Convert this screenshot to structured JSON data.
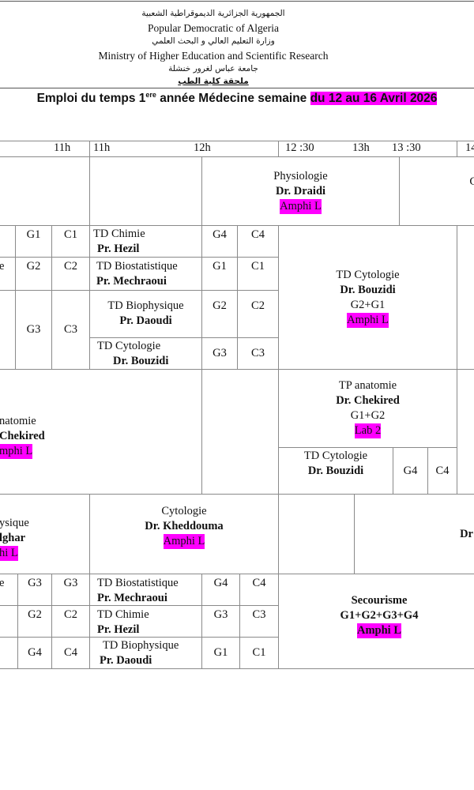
{
  "header": {
    "arabic_republic": "الجمهورية الجزائرية الديموقراطية الشعبية",
    "republic": "Popular Democratic of Algeria",
    "arabic_ministry": "وزارة التعليم العالي و البحث العلمي",
    "ministry": "Ministry of  Higher Education  and Scientific Research",
    "arabic_university": "جامعة عباس لغرور خنشلة",
    "arabic_faculty": "ملحقة كلية الطب"
  },
  "title": {
    "main": "Emploi du temps 1",
    "sup": "ere",
    "rest": " année Médecine semaine ",
    "dates": "du 12 au 16 Avril 2026"
  },
  "highlight_color": "#ff00ff",
  "times": [
    "11h",
    "11h",
    "12h",
    "12 :30",
    "13h",
    "13 :30",
    "14"
  ],
  "row1": {
    "course": "Physiologie",
    "teacher": "Dr. Draidi",
    "room": "Amphi L",
    "right_fragment": "C"
  },
  "row2": {
    "left": [
      {
        "frag": "",
        "g": "G1",
        "c": "C1"
      },
      {
        "frag": "e",
        "g": "G2",
        "c": "C2"
      },
      {
        "frag": "",
        "g": "G3",
        "c": "C3"
      }
    ],
    "mid": [
      {
        "course": "TD Chimie",
        "teacher": "Pr. Hezil",
        "g": "G4",
        "c": "C4"
      },
      {
        "course": "TD Biostatistique",
        "teacher": "Pr. Mechraoui",
        "g": "G1",
        "c": "C1"
      },
      {
        "course": "TD Biophysique",
        "teacher": "Pr. Daoudi",
        "g": "G2",
        "c": "C2"
      },
      {
        "course": "TD Cytologie",
        "teacher": "Dr. Bouzidi",
        "g": "G3",
        "c": "C3"
      }
    ],
    "right": {
      "course": "TD Cytologie",
      "teacher": "Dr. Bouzidi",
      "groups": "G2+G1",
      "room": "Amphi L"
    }
  },
  "row3": {
    "left": {
      "course": "natomie",
      "teacher": "Chekired",
      "room": "mphi L"
    },
    "tp": {
      "course": "TP anatomie",
      "teacher": "Dr. Chekired",
      "groups": "G1+G2",
      "room": "Lab 2"
    },
    "td": {
      "course": "TD Cytologie",
      "teacher": "Dr. Bouzidi",
      "g": "G4",
      "c": "C4"
    }
  },
  "row4": {
    "left": {
      "course": "ysique",
      "teacher": "lghar",
      "room": "hi L"
    },
    "mid": {
      "course": "Cytologie",
      "teacher": "Dr. Kheddouma",
      "room": "Amphi L"
    },
    "right_fragment": "Dr"
  },
  "row5": {
    "left": [
      {
        "frag": "e",
        "g": "G3",
        "c": "G3"
      },
      {
        "frag": "",
        "g": "G2",
        "c": "C2"
      },
      {
        "frag": "",
        "g": "G4",
        "c": "C4"
      }
    ],
    "mid": [
      {
        "course": "TD Biostatistique",
        "teacher": "Pr. Mechraoui",
        "g": "G4",
        "c": "C4"
      },
      {
        "course": "TD Chimie",
        "teacher": "Pr. Hezil",
        "g": "G3",
        "c": "C3"
      },
      {
        "course": "TD Biophysique",
        "teacher": "Pr. Daoudi",
        "g": "G1",
        "c": "C1"
      }
    ],
    "right": {
      "course": "Secourisme",
      "groups": "G1+G2+G3+G4",
      "room": "Amphi L"
    }
  }
}
